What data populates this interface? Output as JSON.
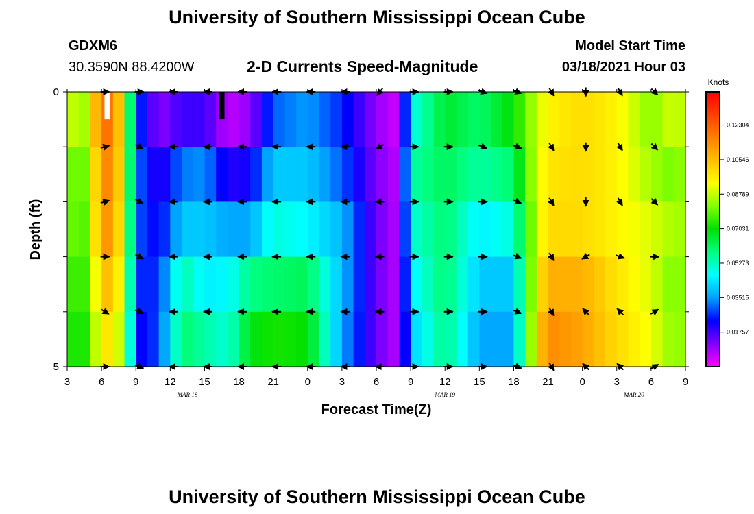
{
  "page": {
    "title": "University of Southern Mississippi Ocean Cube",
    "footer_title": "University of Southern Mississippi Ocean Cube"
  },
  "header": {
    "station": "GDXM6",
    "coords": "30.3590N 88.4200W",
    "subtitle": "2-D Currents Speed-Magnitude",
    "model_label": "Model Start Time",
    "model_time": "03/18/2021 Hour 03"
  },
  "chart_data": {
    "type": "heatmap",
    "title": "2-D Currents Speed-Magnitude",
    "xlabel": "Forecast Time(Z)",
    "ylabel": "Depth (ft)",
    "x_tick_labels": [
      "3",
      "6",
      "9",
      "12",
      "15",
      "18",
      "21",
      "0",
      "3",
      "6",
      "9",
      "12",
      "15",
      "18",
      "21",
      "0",
      "3",
      "6",
      "9"
    ],
    "x_ticks_hours": [
      0,
      3,
      6,
      9,
      12,
      15,
      18,
      21,
      24,
      27,
      30,
      33,
      36,
      39,
      42,
      45,
      48,
      51,
      54
    ],
    "date_labels": [
      {
        "label": "MAR 18",
        "hour": 10.5
      },
      {
        "label": "MAR 19",
        "hour": 33
      },
      {
        "label": "MAR 20",
        "hour": 49.5
      }
    ],
    "xlim": [
      0,
      54
    ],
    "y_tick_labels": [
      "0",
      "5"
    ],
    "ylim": [
      0,
      5
    ],
    "depth_rows": 5,
    "colorbar": {
      "label": "Knots",
      "range": [
        0,
        0.14
      ],
      "tick_values": [
        0.01757,
        0.03515,
        0.05273,
        0.07031,
        0.08789,
        0.10546,
        0.12304
      ],
      "tick_labels": [
        "0.01757",
        "0.03515",
        "0.05273",
        "0.07031",
        "0.08789",
        "0.10546",
        "0.12304"
      ],
      "colors": [
        "#ff00ff",
        "#8000ff",
        "#0000ff",
        "#00a0ff",
        "#00ffff",
        "#00ff80",
        "#00e000",
        "#80ff00",
        "#ffff00",
        "#ffc000",
        "#ff8000",
        "#ff4000",
        "#ff0000"
      ]
    },
    "speed_points": [
      {
        "hour": 0,
        "values": [
          0.1,
          0.09,
          0.09,
          0.085,
          0.08
        ]
      },
      {
        "hour": 1,
        "values": [
          0.075,
          0.07,
          0.068,
          0.066,
          0.065
        ]
      },
      {
        "hour": 2,
        "values": [
          0.095,
          0.09,
          0.088,
          0.085,
          0.08
        ]
      },
      {
        "hour": 3,
        "values": [
          0.118,
          0.112,
          0.11,
          0.1,
          0.095
        ]
      },
      {
        "hour": 4,
        "values": [
          0.12,
          0.118,
          0.115,
          0.11,
          0.1
        ]
      },
      {
        "hour": 5,
        "values": [
          0.09,
          0.088,
          0.086,
          0.082,
          0.078
        ]
      },
      {
        "hour": 6,
        "values": [
          0.03,
          0.032,
          0.03,
          0.026,
          0.022
        ]
      },
      {
        "hour": 8,
        "values": [
          0.01,
          0.018,
          0.022,
          0.026,
          0.028
        ]
      },
      {
        "hour": 10,
        "values": [
          0.018,
          0.032,
          0.04,
          0.055,
          0.06
        ]
      },
      {
        "hour": 12,
        "values": [
          0.018,
          0.034,
          0.04,
          0.045,
          0.055
        ]
      },
      {
        "hour": 14,
        "values": [
          0.006,
          0.02,
          0.036,
          0.046,
          0.05
        ]
      },
      {
        "hour": 16,
        "values": [
          0.01,
          0.022,
          0.036,
          0.058,
          0.068
        ]
      },
      {
        "hour": 18,
        "values": [
          0.03,
          0.04,
          0.05,
          0.06,
          0.072
        ]
      },
      {
        "hour": 21,
        "values": [
          0.035,
          0.04,
          0.046,
          0.062,
          0.07
        ]
      },
      {
        "hour": 24,
        "values": [
          0.026,
          0.03,
          0.038,
          0.038,
          0.036
        ]
      },
      {
        "hour": 27,
        "values": [
          0.01,
          0.012,
          0.014,
          0.014,
          0.014
        ]
      },
      {
        "hour": 29,
        "values": [
          0.004,
          0.006,
          0.006,
          0.006,
          0.006
        ]
      },
      {
        "hour": 30,
        "values": [
          0.048,
          0.055,
          0.05,
          0.045,
          0.04
        ]
      },
      {
        "hour": 33,
        "values": [
          0.066,
          0.062,
          0.06,
          0.06,
          0.058
        ]
      },
      {
        "hour": 36,
        "values": [
          0.06,
          0.055,
          0.045,
          0.04,
          0.036
        ]
      },
      {
        "hour": 39,
        "values": [
          0.07,
          0.06,
          0.05,
          0.04,
          0.036
        ]
      },
      {
        "hour": 41,
        "values": [
          0.088,
          0.09,
          0.09,
          0.095,
          0.1
        ]
      },
      {
        "hour": 42,
        "values": [
          0.095,
          0.098,
          0.1,
          0.108,
          0.115
        ]
      },
      {
        "hour": 45,
        "values": [
          0.1,
          0.1,
          0.1,
          0.108,
          0.11
        ]
      },
      {
        "hour": 48,
        "values": [
          0.095,
          0.095,
          0.095,
          0.098,
          0.1
        ]
      },
      {
        "hour": 51,
        "values": [
          0.082,
          0.085,
          0.09,
          0.09,
          0.092
        ]
      },
      {
        "hour": 53,
        "values": [
          0.09,
          0.08,
          0.085,
          0.08,
          0.082
        ]
      },
      {
        "hour": 54,
        "values": [
          0.085,
          0.085,
          0.085,
          0.085,
          0.085
        ]
      }
    ],
    "vector_depths": [
      0,
      1,
      2,
      3,
      4,
      5
    ],
    "vector_columns": [
      {
        "hour": 3.3,
        "angles": [
          0,
          -15,
          -15,
          0,
          30,
          0
        ]
      },
      {
        "hour": 6.3,
        "angles": [
          0,
          30,
          30,
          30,
          20,
          20
        ]
      },
      {
        "hour": 9.3,
        "angles": [
          180,
          180,
          180,
          180,
          180,
          180
        ]
      },
      {
        "hour": 12.3,
        "angles": [
          180,
          180,
          180,
          180,
          180,
          180
        ]
      },
      {
        "hour": 15.3,
        "angles": [
          180,
          180,
          180,
          180,
          180,
          180
        ]
      },
      {
        "hour": 18.3,
        "angles": [
          180,
          180,
          180,
          180,
          180,
          180
        ]
      },
      {
        "hour": 21.3,
        "angles": [
          180,
          180,
          180,
          180,
          180,
          180
        ]
      },
      {
        "hour": 24.3,
        "angles": [
          180,
          180,
          180,
          180,
          180,
          180
        ]
      },
      {
        "hour": 27.3,
        "angles": [
          130,
          150,
          180,
          180,
          180,
          180
        ]
      },
      {
        "hour": 30.3,
        "angles": [
          0,
          0,
          0,
          0,
          0,
          0
        ]
      },
      {
        "hour": 33.3,
        "angles": [
          0,
          0,
          0,
          0,
          0,
          0
        ]
      },
      {
        "hour": 36.3,
        "angles": [
          20,
          20,
          0,
          0,
          0,
          0
        ]
      },
      {
        "hour": 39.3,
        "angles": [
          20,
          20,
          20,
          20,
          20,
          20
        ]
      },
      {
        "hour": 42.3,
        "angles": [
          60,
          60,
          60,
          60,
          60,
          60
        ]
      },
      {
        "hour": 45.3,
        "angles": [
          90,
          90,
          90,
          150,
          225,
          225
        ]
      },
      {
        "hour": 48.3,
        "angles": [
          60,
          60,
          60,
          20,
          225,
          225
        ]
      },
      {
        "hour": 51.3,
        "angles": [
          45,
          45,
          45,
          0,
          -30,
          -30
        ]
      }
    ],
    "missing_marks": [
      {
        "hour": 3.5,
        "depth_top": 0,
        "depth_bottom": 0.5,
        "color": "#ffffff"
      },
      {
        "hour": 13.5,
        "depth_top": 0,
        "depth_bottom": 0.5,
        "color": "#000000"
      }
    ]
  }
}
